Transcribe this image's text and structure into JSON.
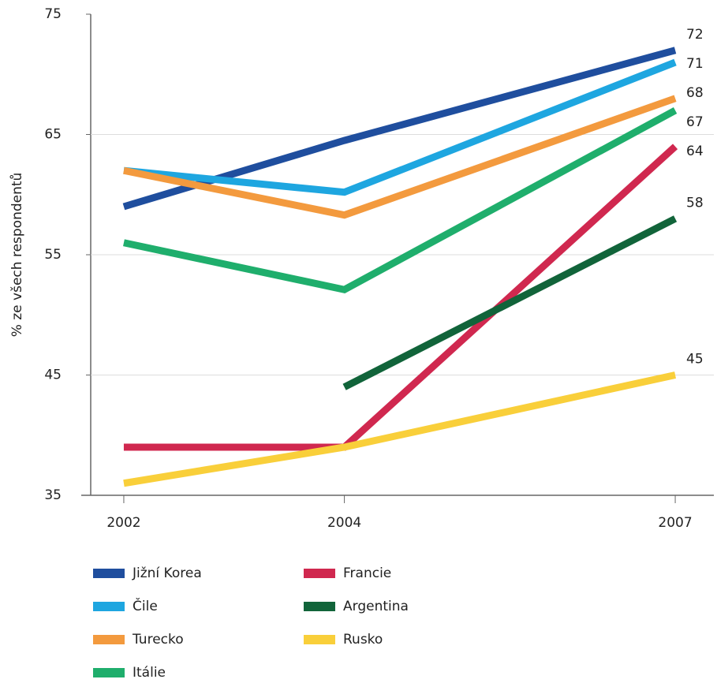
{
  "chart_data": {
    "type": "line",
    "y_label": "% ze všech respondentů",
    "x": [
      2002,
      2004,
      2007
    ],
    "xlim": [
      2001.7,
      2007.35
    ],
    "xticks": [
      2002,
      2004,
      2007
    ],
    "ylim": [
      35,
      75
    ],
    "yticks": [
      35,
      45,
      55,
      65,
      75
    ],
    "grid": true,
    "series": [
      {
        "name": "Jižní Korea",
        "color": "#1f4e9e",
        "values": [
          59,
          64.5,
          72
        ]
      },
      {
        "name": "Čile",
        "color": "#1ea6e0",
        "values": [
          62,
          60.2,
          71
        ]
      },
      {
        "name": "Turecko",
        "color": "#f39a3e",
        "values": [
          62,
          58.3,
          68
        ]
      },
      {
        "name": "Itálie",
        "color": "#1fae6c",
        "values": [
          56,
          52.1,
          67
        ]
      },
      {
        "name": "Francie",
        "color": "#d0284f",
        "values": [
          39,
          39,
          64
        ]
      },
      {
        "name": "Argentina",
        "color": "#11643a",
        "values": [
          null,
          44,
          58
        ]
      },
      {
        "name": "Rusko",
        "color": "#f9cf3a",
        "values": [
          36,
          39,
          45
        ]
      }
    ]
  }
}
